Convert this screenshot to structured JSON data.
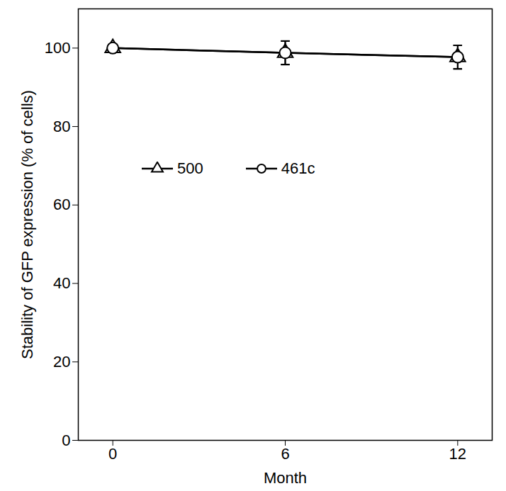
{
  "chart_data": {
    "type": "line",
    "x_label": "Month",
    "y_label": "Stability of GFP expression (% of cells)",
    "x": [
      0,
      6,
      12
    ],
    "series": [
      {
        "name": "500",
        "color": "#000000",
        "marker": "triangle",
        "values": [
          100,
          98.8,
          97.7
        ],
        "error": [
          0.8,
          3,
          3
        ]
      },
      {
        "name": "461c",
        "color": "#000000",
        "marker": "circle",
        "values": [
          100,
          98.8,
          97.7
        ],
        "error": [
          0.8,
          3,
          3
        ]
      }
    ],
    "xlim": [
      -1.2,
      13.2
    ],
    "xticks": [
      0,
      6,
      12
    ],
    "ylim": [
      0,
      110
    ],
    "yticks": [
      0,
      20,
      40,
      60,
      80,
      100
    ],
    "legend": "top"
  }
}
